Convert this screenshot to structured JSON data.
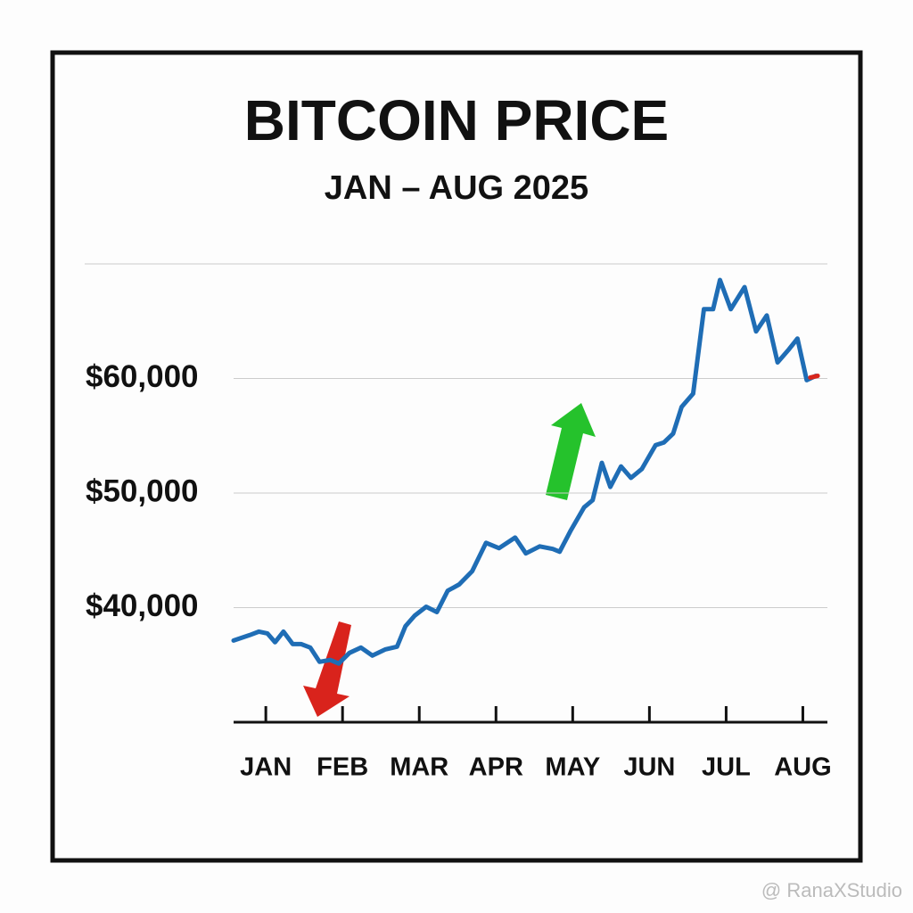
{
  "chart_data": {
    "type": "line",
    "title": "BITCOIN PRICE",
    "subtitle": "JAN – AUG 2025",
    "x": [
      0.58,
      0.79,
      0.91,
      1.02,
      1.12,
      1.23,
      1.35,
      1.46,
      1.58,
      1.7,
      1.84,
      1.95,
      2.09,
      2.24,
      2.39,
      2.56,
      2.71,
      2.82,
      2.94,
      3.09,
      3.23,
      3.37,
      3.52,
      3.69,
      3.87,
      4.04,
      4.25,
      4.39,
      4.57,
      4.74,
      4.83,
      4.97,
      5.15,
      5.26,
      5.38,
      5.49,
      5.63,
      5.76,
      5.9,
      6.08,
      6.19,
      6.31,
      6.42,
      6.57,
      6.71,
      6.83,
      6.92,
      7.06,
      7.24,
      7.39,
      7.53,
      7.67,
      7.82,
      7.93,
      8.05,
      8.17
    ],
    "series": [
      {
        "color": "#1f6db5",
        "values": [
          37130,
          37600,
          37910,
          37750,
          36980,
          37910,
          36820,
          36820,
          36510,
          35270,
          35430,
          35120,
          36050,
          36510,
          35810,
          36360,
          36590,
          38370,
          39300,
          40080,
          39610,
          41470,
          42020,
          43180,
          45660,
          45190,
          46120,
          44730,
          45350,
          45120,
          44880,
          46670,
          48760,
          49380,
          52640,
          50540,
          52330,
          51320,
          52090,
          54190,
          54420,
          55190,
          57520,
          58680,
          66050,
          66050,
          68600,
          66050,
          67980,
          64110,
          65500,
          61400,
          62560,
          63490,
          59850,
          60230
        ]
      }
    ],
    "end_color": "#d9261c",
    "xlim": [
      0.58,
      8.32
    ],
    "xticks": [
      {
        "value": 1,
        "label": "JAN"
      },
      {
        "value": 2,
        "label": "FEB"
      },
      {
        "value": 3,
        "label": "MAR"
      },
      {
        "value": 4,
        "label": "APR"
      },
      {
        "value": 5,
        "label": "MAY"
      },
      {
        "value": 6,
        "label": "JUN"
      },
      {
        "value": 7,
        "label": "JUL"
      },
      {
        "value": 8,
        "label": "AUG"
      }
    ],
    "ylim": [
      30000,
      70000
    ],
    "yticks": [
      {
        "value": 40000,
        "label": "$40,000"
      },
      {
        "value": 50000,
        "label": "$50,000"
      },
      {
        "value": 60000,
        "label": "$60,000"
      }
    ],
    "grid": true,
    "watermark": "@ RanaXStudio"
  }
}
